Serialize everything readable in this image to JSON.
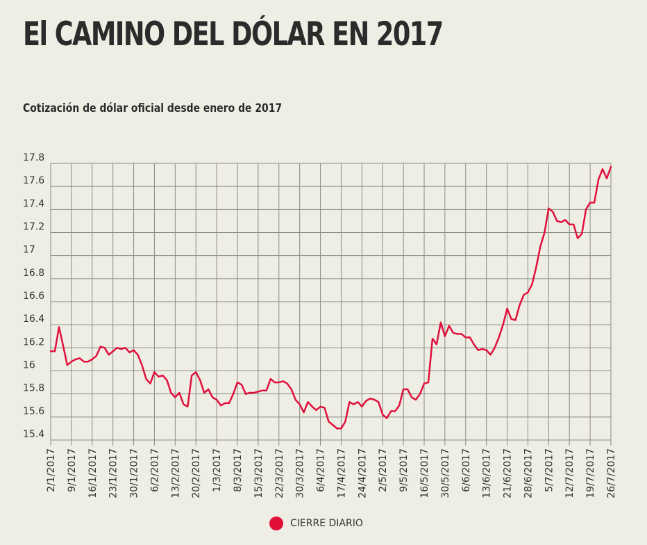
{
  "title": "El CAMINO DEL DÓLAR EN 2017",
  "subtitle": "Cotización de dólar oficial desde enero de 2017",
  "legend": {
    "label": "CIERRE DIARIO",
    "color": "#e0103a"
  },
  "chart_data": {
    "type": "line",
    "ylim": [
      15.4,
      17.8
    ],
    "yticks": [
      "15.4",
      "15.6",
      "15.8",
      "16",
      "16.2",
      "16.4",
      "16.6",
      "16.8",
      "17",
      "17.2",
      "17.4",
      "17.6",
      "17.8"
    ],
    "xticks": [
      "2/1/2017",
      "9/1/2017",
      "16/1/2017",
      "23/1/2017",
      "30/1/2017",
      "6/2/2017",
      "13/2/2017",
      "20/2/2017",
      "1/3/2017",
      "8/3/2017",
      "15/3/2017",
      "22/3/2017",
      "30/3/2017",
      "6/4/2017",
      "17/4/2017",
      "24/4/2017",
      "2/5/2017",
      "9/5/2017",
      "16/5/2017",
      "30/5/2017",
      "6/6/2017",
      "13/6/2017",
      "21/6/2017",
      "28/6/2017",
      "5/7/2017",
      "12/7/2017",
      "19/7/2017",
      "26/7/2017"
    ],
    "grid": true,
    "series": [
      {
        "name": "CIERRE DIARIO",
        "color": "#e0103a",
        "values": [
          16.17,
          16.17,
          16.38,
          16.22,
          16.05,
          16.08,
          16.1,
          16.11,
          16.08,
          16.08,
          16.1,
          16.13,
          16.21,
          16.2,
          16.14,
          16.17,
          16.2,
          16.19,
          16.2,
          16.16,
          16.18,
          16.14,
          16.05,
          15.93,
          15.89,
          15.99,
          15.95,
          15.96,
          15.92,
          15.81,
          15.77,
          15.81,
          15.71,
          15.69,
          15.96,
          15.99,
          15.92,
          15.81,
          15.84,
          15.77,
          15.75,
          15.7,
          15.72,
          15.72,
          15.8,
          15.9,
          15.88,
          15.8,
          15.81,
          15.81,
          15.82,
          15.83,
          15.83,
          15.93,
          15.9,
          15.9,
          15.91,
          15.89,
          15.84,
          15.75,
          15.71,
          15.64,
          15.73,
          15.69,
          15.66,
          15.69,
          15.68,
          15.56,
          15.53,
          15.5,
          15.5,
          15.56,
          15.73,
          15.71,
          15.73,
          15.69,
          15.74,
          15.76,
          15.75,
          15.73,
          15.62,
          15.59,
          15.65,
          15.65,
          15.7,
          15.84,
          15.84,
          15.77,
          15.75,
          15.8,
          15.89,
          15.9,
          16.28,
          16.23,
          16.42,
          16.3,
          16.39,
          16.33,
          16.32,
          16.32,
          16.29,
          16.29,
          16.23,
          16.18,
          16.19,
          16.18,
          16.14,
          16.2,
          16.29,
          16.4,
          16.54,
          16.45,
          16.44,
          16.57,
          16.66,
          16.68,
          16.75,
          16.9,
          17.08,
          17.2,
          17.41,
          17.38,
          17.3,
          17.29,
          17.31,
          17.27,
          17.27,
          17.15,
          17.19,
          17.4,
          17.46,
          17.46,
          17.66,
          17.75,
          17.67,
          17.77
        ]
      }
    ]
  }
}
